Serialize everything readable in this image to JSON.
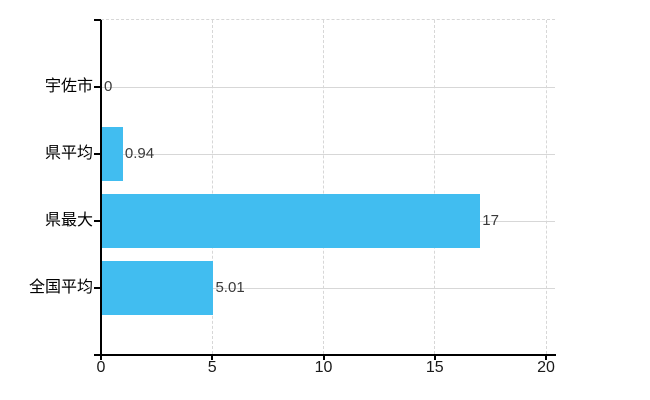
{
  "chart_data": {
    "type": "bar",
    "orientation": "horizontal",
    "title": "",
    "categories": [
      "宇佐市",
      "県平均",
      "県最大",
      "全国平均"
    ],
    "values": [
      0,
      0.94,
      17,
      5.01
    ],
    "value_labels": [
      "0",
      "0.94",
      "17",
      "5.01"
    ],
    "xlabel": "",
    "ylabel": "",
    "xlim": [
      0,
      20
    ],
    "xticks": [
      0,
      5,
      10,
      15,
      20
    ],
    "xtick_labels": [
      "0",
      "5",
      "10",
      "15",
      "20"
    ],
    "grid": "on",
    "legend": "none",
    "colors": {
      "bar": "#41bdf0",
      "axis": "#000000",
      "grid": "#d7d7d7",
      "category_label": "#000000",
      "tick_label": "#1a1a1a",
      "value_label": "#3a3a3a",
      "background": "#ffffff"
    }
  }
}
